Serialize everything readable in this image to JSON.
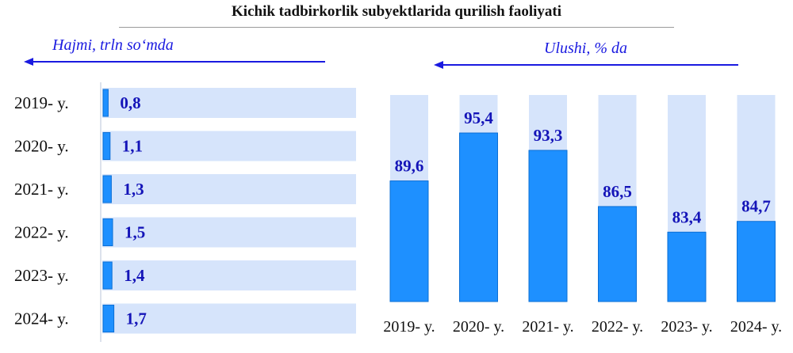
{
  "title": "Kichik tadbirkorlik subyektlarida qurilish faoliyati",
  "left_subtitle": "Hajmi, trln so‘mda",
  "right_subtitle": "Ulushi, % da",
  "colors": {
    "accent": "#1a1ae0",
    "bar": "#1e90ff",
    "bar_dark": "#0b6fd6",
    "track": "#d6e4fb",
    "label": "#1414b8"
  },
  "chart_data": [
    {
      "type": "bar",
      "orientation": "horizontal",
      "title": "Hajmi, trln so‘mda",
      "categories": [
        "2019- y.",
        "2020- y.",
        "2021- y.",
        "2022- y.",
        "2023- y.",
        "2024- y."
      ],
      "values": [
        0.8,
        1.1,
        1.3,
        1.5,
        1.4,
        1.7
      ],
      "value_labels": [
        "0,8",
        "1,1",
        "1,3",
        "1,5",
        "1,4",
        "1,7"
      ],
      "xlim": [
        0,
        40
      ]
    },
    {
      "type": "bar",
      "orientation": "vertical",
      "title": "Ulushi, % da",
      "categories": [
        "2019- y.",
        "2020- y.",
        "2021- y.",
        "2022- y.",
        "2023- y.",
        "2024- y."
      ],
      "values": [
        89.6,
        95.4,
        93.3,
        86.5,
        83.4,
        84.7
      ],
      "value_labels": [
        "89,6",
        "95,4",
        "93,3",
        "86,5",
        "83,4",
        "84,7"
      ],
      "ylim": [
        75,
        100
      ]
    }
  ]
}
